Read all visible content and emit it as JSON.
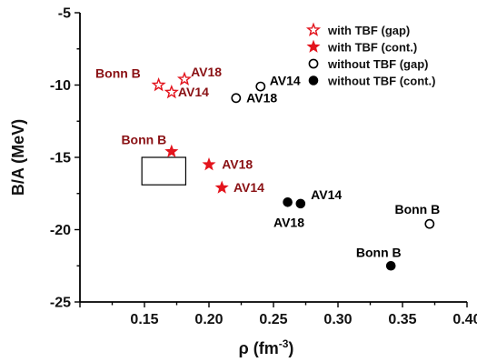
{
  "chart_data": {
    "type": "scatter",
    "xlim": [
      0.1,
      0.4
    ],
    "ylim": [
      -25,
      -5
    ],
    "x_ticks": [
      "0.15",
      "0.20",
      "0.25",
      "0.30",
      "0.35",
      "0.40"
    ],
    "x_tick_values": [
      0.15,
      0.2,
      0.25,
      0.3,
      0.35,
      0.4
    ],
    "y_ticks": [
      "-5",
      "-10",
      "-15",
      "-20",
      "-25"
    ],
    "y_tick_values": [
      -5,
      -10,
      -15,
      -20,
      -25
    ],
    "xlabel_main": "ρ (fm",
    "xlabel_sup": "-3",
    "xlabel_end": ")",
    "ylabel": "B/A (MeV)",
    "grid": false,
    "legend_position": "top-right",
    "colors": {
      "red": "#e3141d",
      "dark_red": "#8a1114",
      "black": "#000000"
    },
    "legend": [
      {
        "label": "with TBF (gap)",
        "marker": "open-star",
        "color": "#e3141d"
      },
      {
        "label": "with TBF (cont.)",
        "marker": "filled-star",
        "color": "#e3141d"
      },
      {
        "label": "without TBF (gap)",
        "marker": "open-circle",
        "color": "#000000"
      },
      {
        "label": "without TBF (cont.)",
        "marker": "filled-circle",
        "color": "#000000"
      }
    ],
    "series": [
      {
        "name": "with TBF (gap)",
        "marker": "open-star",
        "color": "#e3141d",
        "points": [
          {
            "label": "Bonn B",
            "x": 0.161,
            "y": -10.0
          },
          {
            "label": "AV18",
            "x": 0.181,
            "y": -9.6
          },
          {
            "label": "AV14",
            "x": 0.171,
            "y": -10.5
          }
        ]
      },
      {
        "name": "with TBF (cont.)",
        "marker": "filled-star",
        "color": "#e3141d",
        "points": [
          {
            "label": "Bonn B",
            "x": 0.171,
            "y": -14.6
          },
          {
            "label": "AV18",
            "x": 0.2,
            "y": -15.5
          },
          {
            "label": "AV14",
            "x": 0.21,
            "y": -17.1
          }
        ]
      },
      {
        "name": "without TBF (gap)",
        "marker": "open-circle",
        "color": "#000000",
        "points": [
          {
            "label": "AV14",
            "x": 0.24,
            "y": -10.1
          },
          {
            "label": "AV18",
            "x": 0.221,
            "y": -10.9
          },
          {
            "label": "Bonn B",
            "x": 0.371,
            "y": -19.6
          }
        ]
      },
      {
        "name": "without TBF (cont.)",
        "marker": "filled-circle",
        "color": "#000000",
        "points": [
          {
            "label": "AV18",
            "x": 0.261,
            "y": -18.1
          },
          {
            "label": "AV14",
            "x": 0.271,
            "y": -18.2
          },
          {
            "label": "Bonn B",
            "x": 0.341,
            "y": -22.5
          }
        ]
      }
    ],
    "annotations": [
      {
        "text": "Bonn B",
        "color": "#8a1114",
        "x": 0.112,
        "y": -9.5
      },
      {
        "text": "AV18",
        "color": "#8a1114",
        "x": 0.186,
        "y": -9.4
      },
      {
        "text": "AV14",
        "color": "#8a1114",
        "x": 0.176,
        "y": -10.8
      },
      {
        "text": "Bonn B",
        "color": "#8a1114",
        "x": 0.132,
        "y": -14.1
      },
      {
        "text": "AV18",
        "color": "#8a1114",
        "x": 0.21,
        "y": -15.8
      },
      {
        "text": "AV14",
        "color": "#8a1114",
        "x": 0.219,
        "y": -17.4
      },
      {
        "text": "AV14",
        "color": "#000000",
        "x": 0.247,
        "y": -10.0
      },
      {
        "text": "AV18",
        "color": "#000000",
        "x": 0.229,
        "y": -11.2
      },
      {
        "text": "Bonn B",
        "color": "#000000",
        "x": 0.344,
        "y": -18.9
      },
      {
        "text": "AV18",
        "color": "#000000",
        "x": 0.25,
        "y": -19.8
      },
      {
        "text": "AV14",
        "color": "#000000",
        "x": 0.279,
        "y": -17.9
      },
      {
        "text": "Bonn B",
        "color": "#000000",
        "x": 0.314,
        "y": -21.9
      }
    ],
    "region_box": {
      "x0": 0.148,
      "x1": 0.182,
      "y0": -16.9,
      "y1": -15.0
    }
  }
}
